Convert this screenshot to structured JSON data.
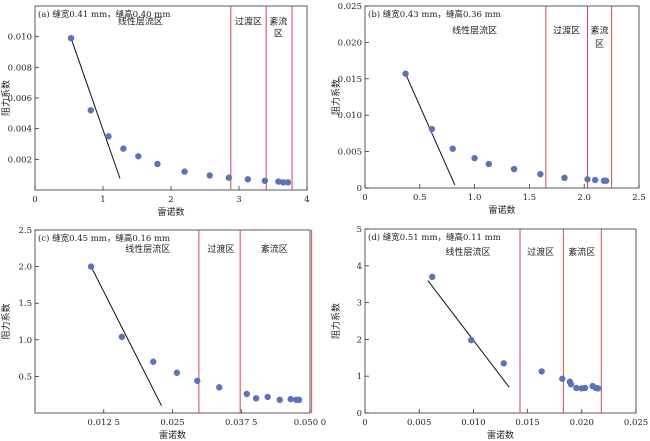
{
  "figure": {
    "background": "#ffffff",
    "colors": {
      "point": "#5b73b8",
      "trend": "#111111",
      "divider": "#d6454f",
      "axis": "#333333"
    }
  },
  "chart_data": [
    {
      "type": "scatter",
      "panel_label": "(a) 缝宽0.41 mm，缝高0.40 mm",
      "xlabel": "雷诺数",
      "ylabel": "阻力系数",
      "xlim": [
        0,
        4
      ],
      "ylim": [
        0,
        0.012
      ],
      "xticks": [
        0,
        1,
        2,
        3,
        4
      ],
      "xtick_labels": [
        "0",
        "1",
        "2",
        "3",
        "4"
      ],
      "yticks": [
        0.002,
        0.004,
        0.006,
        0.008,
        0.01
      ],
      "ytick_labels": [
        "0.002",
        "0.004",
        "0.006",
        "0.008",
        "0.010"
      ],
      "points": [
        [
          0.53,
          0.0099
        ],
        [
          0.82,
          0.0052
        ],
        [
          1.08,
          0.0035
        ],
        [
          1.3,
          0.0027
        ],
        [
          1.52,
          0.0022
        ],
        [
          1.8,
          0.0017
        ],
        [
          2.2,
          0.0012
        ],
        [
          2.57,
          0.00095
        ],
        [
          2.85,
          0.0008
        ],
        [
          3.13,
          0.0007
        ],
        [
          3.38,
          0.0006
        ],
        [
          3.58,
          0.00055
        ],
        [
          3.65,
          0.0005
        ],
        [
          3.72,
          0.0005
        ]
      ],
      "trendline": [
        [
          0.53,
          0.0099
        ],
        [
          1.25,
          0.00075
        ]
      ],
      "dividers": [
        2.88,
        3.4,
        3.78
      ],
      "regions": [
        {
          "label": "线性层流区",
          "x": 1.55,
          "y": 0.0108
        },
        {
          "label": "过渡区",
          "x": 3.14,
          "y": 0.0108
        },
        {
          "label": "紊流",
          "x": 3.58,
          "y": 0.0108
        },
        {
          "label": "区",
          "x": 3.58,
          "y": 0.01
        }
      ]
    },
    {
      "type": "scatter",
      "panel_label": "(b) 缝宽0.43 mm，缝高0.36 mm",
      "xlabel": "雷诺数",
      "ylabel": "阻力系数",
      "xlim": [
        0,
        2.5
      ],
      "ylim": [
        0,
        0.025
      ],
      "xticks": [
        0,
        0.5,
        1.0,
        1.5,
        2.0,
        2.5
      ],
      "xtick_labels": [
        "0",
        "0.5",
        "1.0",
        "1.5",
        "2.0",
        "2.5"
      ],
      "yticks": [
        0,
        0.005,
        0.01,
        0.015,
        0.02,
        0.025
      ],
      "ytick_labels": [
        "0",
        "0.005",
        "0.010",
        "0.015",
        "0.020",
        "0.025"
      ],
      "points": [
        [
          0.37,
          0.0157
        ],
        [
          0.61,
          0.0081
        ],
        [
          0.8,
          0.0054
        ],
        [
          1.0,
          0.0041
        ],
        [
          1.13,
          0.0033
        ],
        [
          1.36,
          0.0026
        ],
        [
          1.6,
          0.0019
        ],
        [
          1.82,
          0.0014
        ],
        [
          2.03,
          0.0012
        ],
        [
          2.1,
          0.0011
        ],
        [
          2.18,
          0.001
        ],
        [
          2.2,
          0.001
        ]
      ],
      "trendline": [
        [
          0.37,
          0.0157
        ],
        [
          0.82,
          0.0004
        ]
      ],
      "dividers": [
        1.65,
        2.03,
        2.25
      ],
      "regions": [
        {
          "label": "线性层流区",
          "x": 1.0,
          "y": 0.0212
        },
        {
          "label": "过渡区",
          "x": 1.84,
          "y": 0.0212
        },
        {
          "label": "紊流",
          "x": 2.14,
          "y": 0.0212
        },
        {
          "label": "区",
          "x": 2.14,
          "y": 0.0194
        }
      ]
    },
    {
      "type": "scatter",
      "panel_label": "(c) 缝宽0.45 mm，缝高0.16 mm",
      "xlabel": "雷诺数",
      "ylabel": "阻力系数",
      "xlim": [
        0,
        0.05
      ],
      "ylim": [
        0,
        2.5
      ],
      "xticks": [
        0.0125,
        0.025,
        0.0375,
        0.05
      ],
      "xtick_labels": [
        "0.012 5",
        "0.025",
        "0.037 5",
        "0.050 0"
      ],
      "yticks": [
        0.5,
        1.0,
        1.5,
        2.0,
        2.5
      ],
      "ytick_labels": [
        "0.5",
        "1.0",
        "1.5",
        "2.0",
        "2.5"
      ],
      "points": [
        [
          0.0102,
          2.0
        ],
        [
          0.0158,
          1.04
        ],
        [
          0.0215,
          0.7
        ],
        [
          0.0258,
          0.55
        ],
        [
          0.0295,
          0.44
        ],
        [
          0.0335,
          0.35
        ],
        [
          0.0385,
          0.26
        ],
        [
          0.0402,
          0.2
        ],
        [
          0.0423,
          0.22
        ],
        [
          0.0445,
          0.18
        ],
        [
          0.0465,
          0.19
        ],
        [
          0.0475,
          0.18
        ],
        [
          0.048,
          0.18
        ]
      ],
      "trendline": [
        [
          0.0102,
          2.0
        ],
        [
          0.023,
          0.1
        ]
      ],
      "dividers": [
        0.0298,
        0.0373,
        0.0503
      ],
      "regions": [
        {
          "label": "线性层流区",
          "x": 0.0205,
          "y": 2.2
        },
        {
          "label": "过渡区",
          "x": 0.0338,
          "y": 2.2
        },
        {
          "label": "紊流区",
          "x": 0.0435,
          "y": 2.2
        }
      ]
    },
    {
      "type": "scatter",
      "panel_label": "(d) 缝宽0.51 mm，缝高0.11 mm",
      "xlabel": "雷诺数",
      "ylabel": "阻力系数",
      "xlim": [
        0,
        0.025
      ],
      "ylim": [
        0,
        5
      ],
      "xticks": [
        0,
        0.005,
        0.01,
        0.015,
        0.02,
        0.025
      ],
      "xtick_labels": [
        "0",
        "0.005",
        "0.010",
        "0.015",
        "0.020",
        "0.025"
      ],
      "yticks": [
        0,
        1,
        2,
        3,
        4,
        5
      ],
      "ytick_labels": [
        "0",
        "1",
        "2",
        "3",
        "4",
        "5"
      ],
      "points": [
        [
          0.0062,
          3.7
        ],
        [
          0.0098,
          1.98
        ],
        [
          0.0128,
          1.35
        ],
        [
          0.0163,
          1.13
        ],
        [
          0.0182,
          0.93
        ],
        [
          0.0189,
          0.85
        ],
        [
          0.019,
          0.78
        ],
        [
          0.0195,
          0.68
        ],
        [
          0.02,
          0.67
        ],
        [
          0.0203,
          0.68
        ],
        [
          0.021,
          0.73
        ],
        [
          0.0213,
          0.68
        ],
        [
          0.0215,
          0.67
        ]
      ],
      "trendline": [
        [
          0.0058,
          3.6
        ],
        [
          0.0133,
          0.7
        ]
      ],
      "dividers": [
        0.0143,
        0.0183,
        0.0218
      ],
      "regions": [
        {
          "label": "线性层流区",
          "x": 0.0095,
          "y": 4.3
        },
        {
          "label": "过渡区",
          "x": 0.0162,
          "y": 4.3
        },
        {
          "label": "紊流区",
          "x": 0.02,
          "y": 4.3
        }
      ]
    }
  ]
}
